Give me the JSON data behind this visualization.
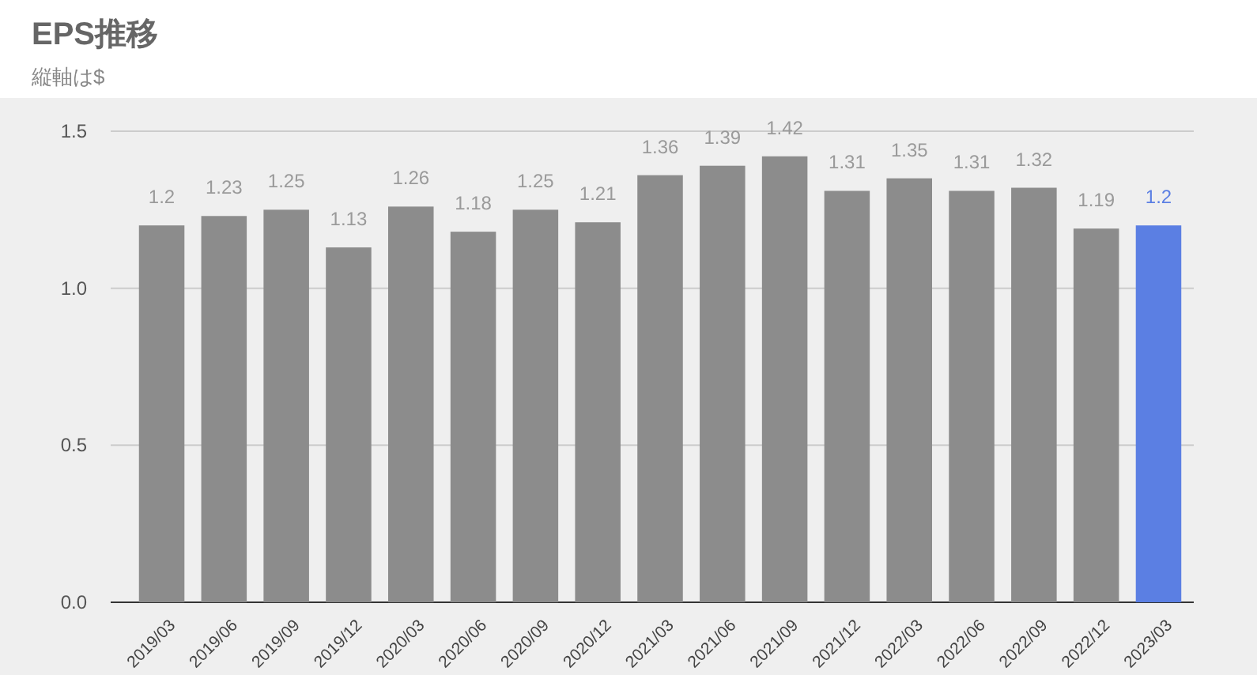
{
  "chart_data": {
    "type": "bar",
    "title": "EPS推移",
    "subtitle": "縦軸は$",
    "categories": [
      "2019/03",
      "2019/06",
      "2019/09",
      "2019/12",
      "2020/03",
      "2020/06",
      "2020/09",
      "2020/12",
      "2021/03",
      "2021/06",
      "2021/09",
      "2021/12",
      "2022/03",
      "2022/06",
      "2022/09",
      "2022/12",
      "2023/03"
    ],
    "values": [
      1.2,
      1.23,
      1.25,
      1.13,
      1.26,
      1.18,
      1.25,
      1.21,
      1.36,
      1.39,
      1.42,
      1.31,
      1.35,
      1.31,
      1.32,
      1.19,
      1.2
    ],
    "colors": [
      "#8c8c8c",
      "#8c8c8c",
      "#8c8c8c",
      "#8c8c8c",
      "#8c8c8c",
      "#8c8c8c",
      "#8c8c8c",
      "#8c8c8c",
      "#8c8c8c",
      "#8c8c8c",
      "#8c8c8c",
      "#8c8c8c",
      "#8c8c8c",
      "#8c8c8c",
      "#8c8c8c",
      "#8c8c8c",
      "#5b7fe3"
    ],
    "ylim": [
      0,
      1.5
    ],
    "yticks": [
      {
        "value": 0,
        "label": "0.0"
      },
      {
        "value": 0.5,
        "label": "0.5"
      },
      {
        "value": 1,
        "label": "1.0"
      },
      {
        "value": 1.5,
        "label": "1.5"
      }
    ],
    "grid": "y",
    "data_labels": true
  }
}
